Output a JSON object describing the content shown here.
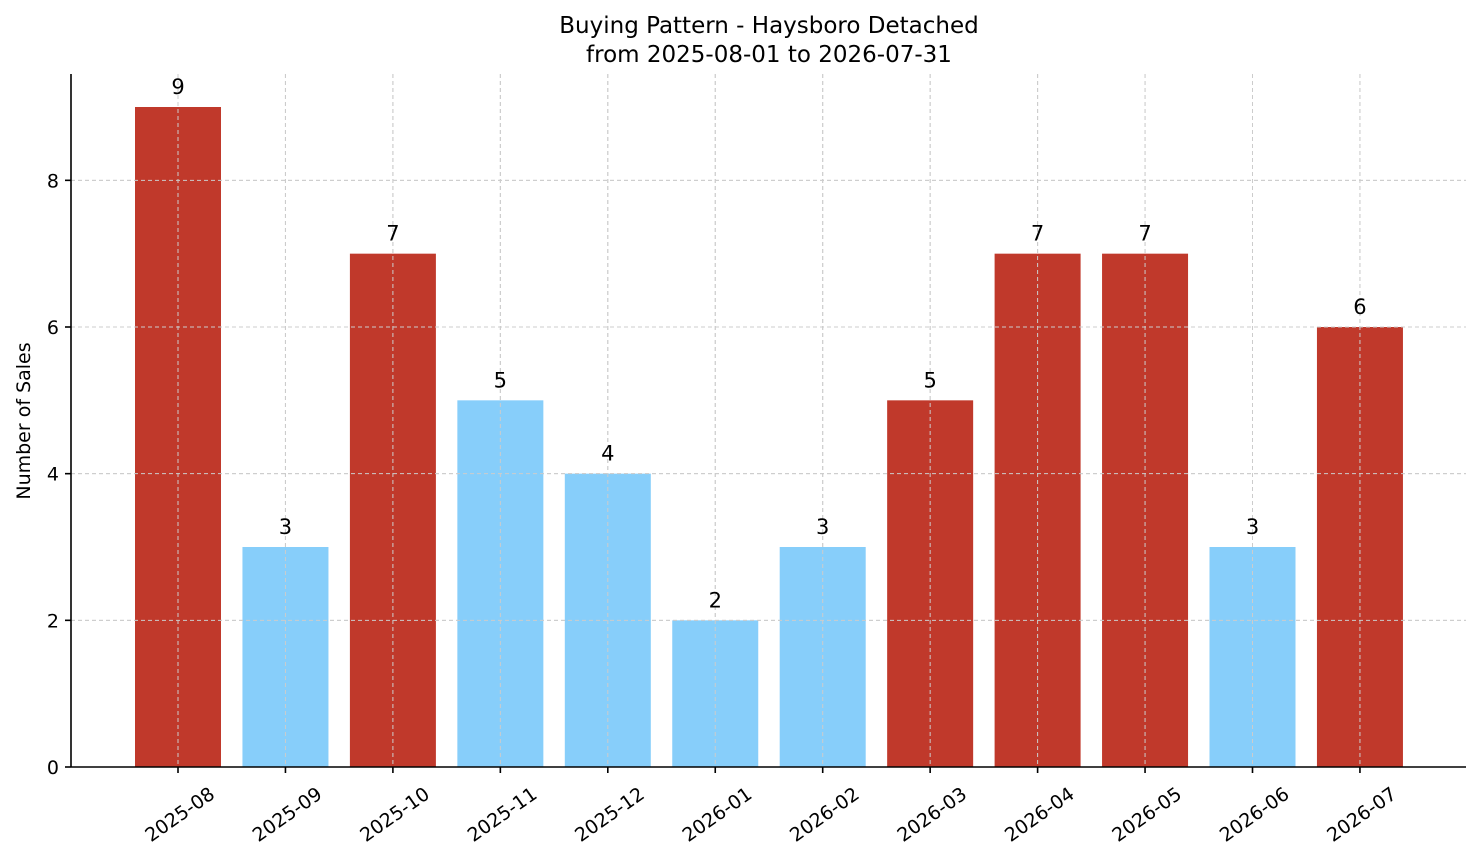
{
  "chart_data": {
    "type": "bar",
    "title": "Buying Pattern - Haysboro Detached",
    "subtitle": "from 2025-08-01 to 2026-07-31",
    "xlabel": "",
    "ylabel": "Number of Sales",
    "categories": [
      "2025-08",
      "2025-09",
      "2025-10",
      "2025-11",
      "2025-12",
      "2026-01",
      "2026-02",
      "2026-03",
      "2026-04",
      "2026-05",
      "2026-06",
      "2026-07"
    ],
    "values": [
      9,
      3,
      7,
      5,
      4,
      2,
      3,
      5,
      7,
      7,
      3,
      6
    ],
    "bar_colors": [
      "#c0392b",
      "#87cefa",
      "#c0392b",
      "#87cefa",
      "#87cefa",
      "#87cefa",
      "#87cefa",
      "#c0392b",
      "#c0392b",
      "#c0392b",
      "#87cefa",
      "#c0392b"
    ],
    "ylim": [
      0,
      9.45
    ],
    "yticks": [
      0,
      2,
      4,
      6,
      8
    ],
    "grid": true,
    "data_labels": true,
    "legend": "none"
  }
}
